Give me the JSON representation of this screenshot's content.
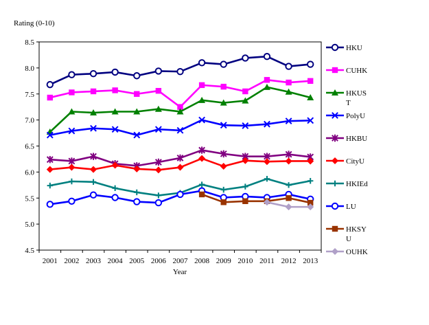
{
  "chart_data": {
    "type": "line",
    "title": "",
    "ylabel": "Rating (0-10)",
    "xlabel": "Year",
    "ylim": [
      4.5,
      8.5
    ],
    "yticks": [
      "8.5",
      "8.0",
      "7.5",
      "7.0",
      "6.5",
      "6.0",
      "5.5",
      "5.0",
      "4.5"
    ],
    "ytick_values": [
      8.5,
      8.0,
      7.5,
      7.0,
      6.5,
      6.0,
      5.5,
      5.0,
      4.5
    ],
    "categories": [
      "2001",
      "2002",
      "2003",
      "2004",
      "2005",
      "2006",
      "2007",
      "2008",
      "2009",
      "2010",
      "2011",
      "2012",
      "2013"
    ],
    "grid": false,
    "legend": "right",
    "series": [
      {
        "name": "HKU",
        "color": "#000080",
        "marker": "circle",
        "values": [
          7.68,
          7.87,
          7.89,
          7.92,
          7.85,
          7.94,
          7.93,
          8.1,
          8.07,
          8.19,
          8.22,
          8.03,
          8.07
        ]
      },
      {
        "name": "CUHK",
        "color": "#ff00ff",
        "marker": "square",
        "values": [
          7.43,
          7.53,
          7.55,
          7.57,
          7.5,
          7.56,
          7.25,
          7.67,
          7.64,
          7.55,
          7.77,
          7.72,
          7.75
        ]
      },
      {
        "name": "HKUST",
        "legend_lines": [
          "HKUS",
          "T"
        ],
        "color": "#008000",
        "marker": "triangle",
        "values": [
          6.77,
          7.16,
          7.14,
          7.16,
          7.16,
          7.21,
          7.16,
          7.38,
          7.33,
          7.37,
          7.63,
          7.54,
          7.43
        ]
      },
      {
        "name": "PolyU",
        "color": "#0000ff",
        "marker": "x",
        "values": [
          6.71,
          6.79,
          6.84,
          6.82,
          6.71,
          6.82,
          6.8,
          7.0,
          6.9,
          6.89,
          6.92,
          6.98,
          6.99
        ]
      },
      {
        "name": "HKBU",
        "color": "#800080",
        "marker": "star",
        "values": [
          6.24,
          6.21,
          6.3,
          6.16,
          6.12,
          6.19,
          6.27,
          6.42,
          6.35,
          6.3,
          6.3,
          6.34,
          6.29
        ]
      },
      {
        "name": "CityU",
        "color": "#ff0000",
        "marker": "diamond",
        "values": [
          6.05,
          6.09,
          6.05,
          6.13,
          6.06,
          6.04,
          6.09,
          6.26,
          6.11,
          6.22,
          6.2,
          6.21,
          6.21
        ]
      },
      {
        "name": "HKIEd",
        "color": "#008080",
        "marker": "plus",
        "values": [
          5.74,
          5.82,
          5.81,
          5.69,
          5.61,
          5.55,
          5.6,
          5.76,
          5.66,
          5.72,
          5.87,
          5.75,
          5.83
        ]
      },
      {
        "name": "LU",
        "color": "#0000ff",
        "marker": "circle",
        "values": [
          5.38,
          5.44,
          5.56,
          5.51,
          5.43,
          5.41,
          5.57,
          5.64,
          5.51,
          5.53,
          5.51,
          5.57,
          5.48
        ]
      },
      {
        "name": "HKSYU",
        "legend_lines": [
          "HKSY",
          "U"
        ],
        "color": "#993300",
        "marker": "square",
        "values": [
          null,
          null,
          null,
          null,
          null,
          null,
          null,
          5.57,
          5.42,
          5.44,
          5.44,
          5.5,
          5.41
        ]
      },
      {
        "name": "OUHK",
        "color": "#b0a0c8",
        "marker": "diamond",
        "values": [
          null,
          null,
          null,
          null,
          null,
          null,
          null,
          null,
          null,
          null,
          5.42,
          5.33,
          5.33
        ]
      }
    ]
  }
}
